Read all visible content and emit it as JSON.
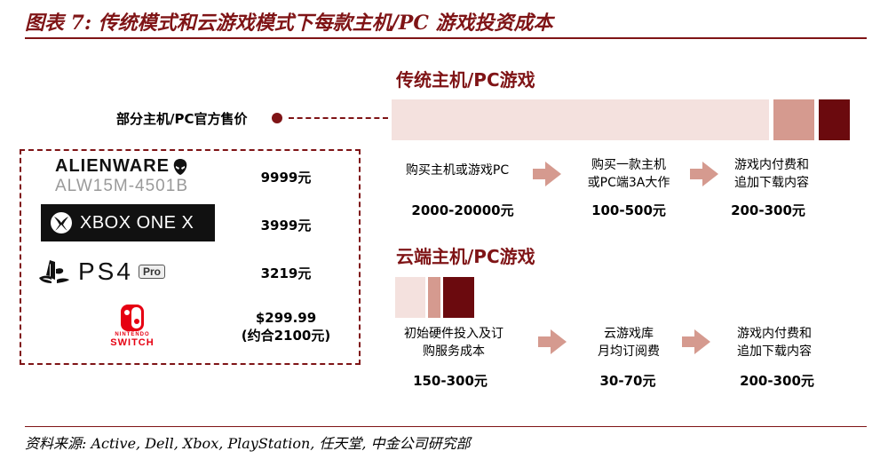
{
  "header": {
    "title": "图表 7:  传统模式和云游戏模式下每款主机/PC 游戏投资成本"
  },
  "traditional": {
    "title": "传统主机/PC游戏",
    "steps": [
      {
        "label": "购买主机或游戏PC",
        "cost": "2000-20000元"
      },
      {
        "label": "购买一款主机\n或PC端3A大作",
        "cost": "100-500元"
      },
      {
        "label": "游戏内付费和\n追加下载内容",
        "cost": "200-300元"
      }
    ]
  },
  "cloud": {
    "title": "云端主机/PC游戏",
    "steps": [
      {
        "label": "初始硬件投入及订\n购服务成本",
        "cost": "150-300元"
      },
      {
        "label": "云游戏库\n月均订阅费",
        "cost": "30-70元"
      },
      {
        "label": "游戏内付费和\n追加下载内容",
        "cost": "200-300元"
      }
    ]
  },
  "official_prices": {
    "label": "部分主机/PC官方售价",
    "items": [
      {
        "brand": "ALIENWARE",
        "model": "ALW15M-4501B",
        "price": "9999元",
        "logo": "alienware-logo"
      },
      {
        "brand": "XBOX ONE X",
        "price": "3999元",
        "logo": "xbox-logo"
      },
      {
        "brand": "PS4",
        "badge": "Pro",
        "price": "3219元",
        "logo": "playstation-logo"
      },
      {
        "brand": "SWITCH",
        "maker": "NINTENDO",
        "price": "$299.99",
        "price_note": "(约合2100元)",
        "logo": "nintendo-switch-logo"
      }
    ]
  },
  "footer": {
    "source": "资料来源: Active, Dell, Xbox, PlayStation, 任天堂, 中金公司研究部"
  },
  "colors": {
    "accent": "#7f1416",
    "light": "#f4e1de",
    "mid": "#d59a8f",
    "dark": "#6b0a0e"
  }
}
